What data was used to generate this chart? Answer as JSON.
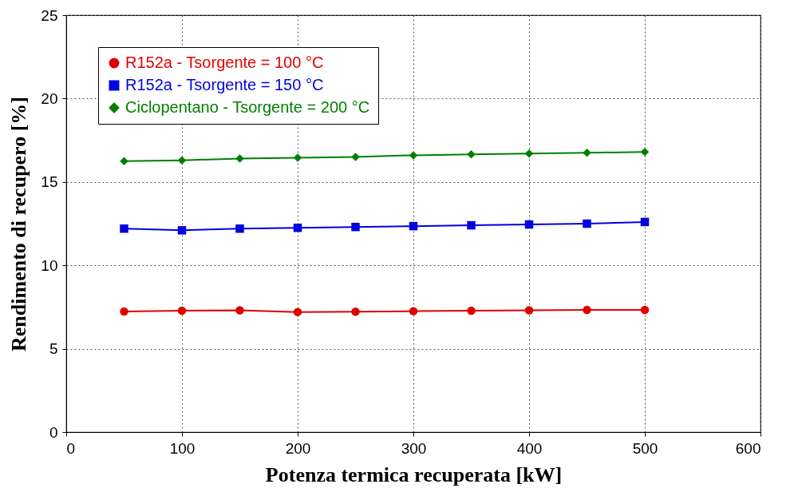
{
  "chart_data": {
    "type": "line",
    "xlabel": "Potenza termica recuperata [kW]",
    "ylabel": "Rendimento di recupero [%]",
    "x": [
      50,
      100,
      150,
      200,
      250,
      300,
      350,
      400,
      450,
      500
    ],
    "series": [
      {
        "name": "R152a - Tsorgente = 100 °C",
        "color": "#e00000",
        "marker": "circle",
        "values": [
          7.23,
          7.28,
          7.3,
          7.2,
          7.22,
          7.25,
          7.28,
          7.3,
          7.33,
          7.33
        ]
      },
      {
        "name": "R152a - Tsorgente = 150 °C",
        "color": "#0000e0",
        "marker": "square",
        "values": [
          12.2,
          12.1,
          12.2,
          12.25,
          12.3,
          12.35,
          12.4,
          12.45,
          12.5,
          12.6
        ]
      },
      {
        "name": "Ciclopentano - Tsorgente = 200 °C",
        "color": "#008000",
        "marker": "diamond",
        "values": [
          16.25,
          16.3,
          16.4,
          16.45,
          16.5,
          16.6,
          16.65,
          16.7,
          16.75,
          16.8
        ]
      }
    ],
    "xlim": [
      0,
      600
    ],
    "xticks": [
      0,
      100,
      200,
      300,
      400,
      500,
      600
    ],
    "ylim": [
      0,
      25
    ],
    "yticks": [
      0,
      5,
      10,
      15,
      20,
      25
    ],
    "grid": true,
    "legend": "top left",
    "line_style": "solid"
  }
}
